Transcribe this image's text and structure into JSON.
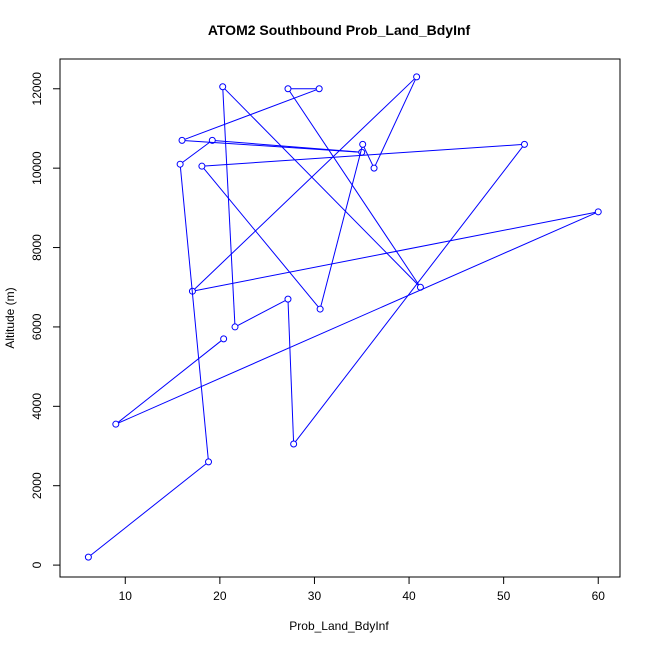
{
  "chart_data": {
    "type": "line",
    "title": "ATOM2 Southbound Prob_Land_BdyInf",
    "xlabel": "Prob_Land_BdyInf",
    "ylabel": "Altitude (m)",
    "xlim": [
      3.1,
      62.3
    ],
    "ylim": [
      -300,
      12750
    ],
    "x_ticks": [
      10,
      20,
      30,
      40,
      50,
      60
    ],
    "y_ticks": [
      0,
      2000,
      4000,
      6000,
      8000,
      10000,
      12000
    ],
    "grid": false,
    "series": [
      {
        "color": "#0000ff",
        "markers": "open-circle",
        "points": [
          [
            6.1,
            200
          ],
          [
            18.8,
            2600
          ],
          [
            15.8,
            10100
          ],
          [
            19.2,
            10700
          ],
          [
            35.0,
            10400
          ],
          [
            16.0,
            10700
          ],
          [
            30.5,
            12000
          ],
          [
            27.2,
            12000
          ],
          [
            41.2,
            7000
          ],
          [
            20.3,
            12050
          ],
          [
            21.6,
            6000
          ],
          [
            27.2,
            6700
          ],
          [
            27.8,
            3050
          ],
          [
            52.2,
            10600
          ],
          [
            18.1,
            10050
          ],
          [
            30.6,
            6450
          ],
          [
            35.1,
            10600
          ],
          [
            36.3,
            10000
          ],
          [
            40.8,
            12300
          ],
          [
            17.1,
            6900
          ],
          [
            60.0,
            8900
          ],
          [
            9.0,
            3550
          ],
          [
            20.4,
            5700
          ]
        ]
      }
    ]
  }
}
